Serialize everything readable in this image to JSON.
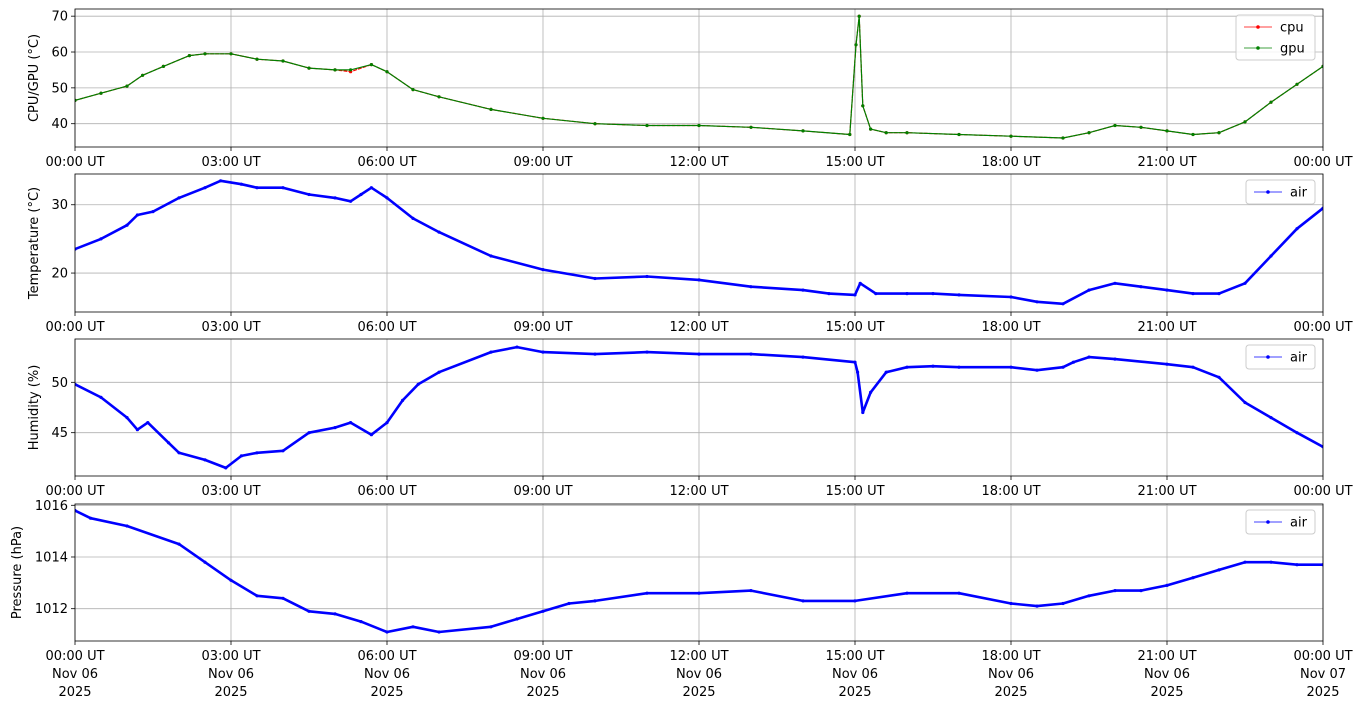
{
  "colors": {
    "cpu": "#ff0000",
    "gpu": "#008000",
    "air": "#0000ff",
    "grid": "#b0b0b0"
  },
  "time_ticks": [
    "00:00 UT",
    "03:00 UT",
    "06:00 UT",
    "09:00 UT",
    "12:00 UT",
    "15:00 UT",
    "18:00 UT",
    "21:00 UT",
    "00:00 UT"
  ],
  "date_line1": [
    "Nov 06",
    "Nov 06",
    "Nov 06",
    "Nov 06",
    "Nov 06",
    "Nov 06",
    "Nov 06",
    "Nov 06",
    "Nov 07"
  ],
  "date_line2": [
    "2025",
    "2025",
    "2025",
    "2025",
    "2025",
    "2025",
    "2025",
    "2025",
    "2025"
  ],
  "chart_data": [
    {
      "type": "line",
      "ylabel": "CPU/GPU (°C)",
      "ylim": [
        33.5,
        72
      ],
      "yticks": [
        40,
        50,
        60,
        70
      ],
      "xlim": [
        "2025-11-06 00:00 UT",
        "2025-11-07 00:00 UT"
      ],
      "grid": true,
      "legend": "top-right",
      "x_hours": [
        0,
        0.5,
        1,
        1.3,
        1.7,
        2.2,
        2.5,
        3,
        3.5,
        4,
        4.5,
        5,
        5.3,
        5.7,
        6,
        6.5,
        7,
        8,
        9,
        10,
        11,
        12,
        13,
        14,
        14.9,
        15.02,
        15.08,
        15.15,
        15.3,
        15.6,
        16,
        17,
        18,
        19,
        19.5,
        20,
        20.5,
        21,
        21.5,
        22,
        22.5,
        23,
        23.5,
        24
      ],
      "series": [
        {
          "name": "cpu",
          "values": [
            46.5,
            48.5,
            50.5,
            53.5,
            56,
            59,
            59.5,
            59.5,
            58,
            57.5,
            55.5,
            55,
            54.5,
            56.5,
            54.5,
            49.5,
            47.5,
            44,
            41.5,
            40,
            39.5,
            39.5,
            39,
            38,
            37,
            62,
            70,
            45,
            38.5,
            37.5,
            37.5,
            37,
            36.5,
            36,
            37.5,
            39.5,
            39,
            38,
            37,
            37.5,
            40.5,
            46,
            51,
            56
          ]
        },
        {
          "name": "gpu",
          "values": [
            46.5,
            48.5,
            50.5,
            53.5,
            56,
            59,
            59.5,
            59.5,
            58,
            57.5,
            55.5,
            55,
            55,
            56.5,
            54.5,
            49.5,
            47.5,
            44,
            41.5,
            40,
            39.5,
            39.5,
            39,
            38,
            37,
            62,
            70,
            45,
            38.5,
            37.5,
            37.5,
            37,
            36.5,
            36,
            37.5,
            39.5,
            39,
            38,
            37,
            37.5,
            40.5,
            46,
            51,
            56
          ]
        }
      ]
    },
    {
      "type": "line",
      "ylabel": "Temperature (°C)",
      "ylim": [
        14.3,
        34.5
      ],
      "yticks": [
        20,
        30
      ],
      "xlim": [
        "2025-11-06 00:00 UT",
        "2025-11-07 00:00 UT"
      ],
      "grid": true,
      "legend": "top-right",
      "x_hours": [
        0,
        0.5,
        1,
        1.2,
        1.5,
        2,
        2.5,
        2.8,
        3.2,
        3.5,
        4,
        4.5,
        5,
        5.3,
        5.5,
        5.7,
        6,
        6.5,
        7,
        8,
        9,
        10,
        11,
        12,
        13,
        14,
        14.5,
        15,
        15.1,
        15.4,
        16,
        16.5,
        17,
        18,
        18.5,
        19,
        19.5,
        20,
        20.5,
        21,
        21.5,
        22,
        22.5,
        23,
        23.5,
        24
      ],
      "series": [
        {
          "name": "air",
          "values": [
            23.5,
            25,
            27,
            28.5,
            29,
            31,
            32.5,
            33.5,
            33,
            32.5,
            32.5,
            31.5,
            31,
            30.5,
            31.5,
            32.5,
            31,
            28,
            26,
            22.5,
            20.5,
            19.2,
            19.5,
            19,
            18,
            17.5,
            17,
            16.8,
            18.5,
            17,
            17,
            17,
            16.8,
            16.5,
            15.8,
            15.5,
            17.5,
            18.5,
            18,
            17.5,
            17,
            17,
            18.5,
            22.5,
            26.5,
            29.5
          ]
        }
      ]
    },
    {
      "type": "line",
      "ylabel": "Humidity (%)",
      "ylim": [
        40.7,
        54.3
      ],
      "yticks": [
        45,
        50
      ],
      "xlim": [
        "2025-11-06 00:00 UT",
        "2025-11-07 00:00 UT"
      ],
      "grid": true,
      "legend": "top-right",
      "x_hours": [
        0,
        0.5,
        1,
        1.2,
        1.4,
        1.8,
        2,
        2.5,
        2.9,
        3.2,
        3.5,
        4,
        4.5,
        5,
        5.3,
        5.7,
        6,
        6.3,
        6.6,
        7,
        8,
        8.5,
        9,
        10,
        11,
        12,
        13,
        14,
        15,
        15.05,
        15.15,
        15.3,
        15.6,
        16,
        16.5,
        17,
        18,
        18.5,
        19,
        19.2,
        19.5,
        20,
        21,
        21.5,
        22,
        22.5,
        23,
        23.5,
        24
      ],
      "series": [
        {
          "name": "air",
          "values": [
            49.8,
            48.5,
            46.5,
            45.3,
            46,
            44,
            43,
            42.3,
            41.5,
            42.7,
            43,
            43.2,
            45,
            45.5,
            46,
            44.8,
            46,
            48.2,
            49.8,
            51,
            53,
            53.5,
            53,
            52.8,
            53,
            52.8,
            52.8,
            52.5,
            52,
            51,
            47,
            49,
            51,
            51.5,
            51.6,
            51.5,
            51.5,
            51.2,
            51.5,
            52,
            52.5,
            52.3,
            51.8,
            51.5,
            50.5,
            48,
            46.5,
            45,
            43.6
          ]
        }
      ]
    },
    {
      "type": "line",
      "ylabel": "Pressure (hPa)",
      "ylim": [
        1010.75,
        1016.05
      ],
      "yticks": [
        1012,
        1014,
        1016
      ],
      "xlim": [
        "2025-11-06 00:00 UT",
        "2025-11-07 00:00 UT"
      ],
      "grid": true,
      "legend": "top-right",
      "x_hours": [
        0,
        0.3,
        1,
        2,
        2.5,
        3,
        3.5,
        4,
        4.5,
        5,
        5.5,
        6,
        6.5,
        7,
        8,
        8.5,
        9,
        9.5,
        10,
        11,
        12,
        13,
        14,
        15,
        16,
        17,
        18,
        18.5,
        19,
        19.5,
        20,
        20.5,
        21,
        21.5,
        22,
        22.5,
        23,
        23.5,
        24
      ],
      "series": [
        {
          "name": "air",
          "values": [
            1015.8,
            1015.5,
            1015.2,
            1014.5,
            1013.8,
            1013.1,
            1012.5,
            1012.4,
            1011.9,
            1011.8,
            1011.5,
            1011.1,
            1011.3,
            1011.1,
            1011.3,
            1011.6,
            1011.9,
            1012.2,
            1012.3,
            1012.6,
            1012.6,
            1012.7,
            1012.3,
            1012.3,
            1012.6,
            1012.6,
            1012.2,
            1012.1,
            1012.2,
            1012.5,
            1012.7,
            1012.7,
            1012.9,
            1013.2,
            1013.5,
            1013.8,
            1013.8,
            1013.7,
            1013.7
          ]
        }
      ]
    }
  ]
}
